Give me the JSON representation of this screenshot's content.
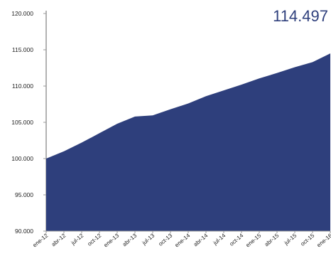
{
  "chart_data": {
    "type": "area",
    "headline_value": "114.497",
    "x": [
      "ene-12",
      "abr-12",
      "jul-12",
      "oct-12",
      "ene-13",
      "abr-13",
      "jul-13",
      "oct-13",
      "ene-14",
      "abr-14",
      "jul-14",
      "oct-14",
      "ene-15",
      "abr-15",
      "jul-15",
      "oct-15",
      "ene-16"
    ],
    "values": [
      100000,
      101000,
      102200,
      103500,
      104800,
      105800,
      105950,
      106800,
      107600,
      108600,
      109400,
      110200,
      111050,
      111800,
      112600,
      113300,
      114497
    ],
    "y_ticks": [
      "90.000",
      "95.000",
      "100.000",
      "105.000",
      "110.000",
      "115.000",
      "120.000"
    ],
    "ylim": [
      90000,
      120000
    ],
    "grid": false,
    "colors": {
      "area": "#2e3f7c",
      "axis": "#999999",
      "headline": "#2e3f7c"
    }
  }
}
